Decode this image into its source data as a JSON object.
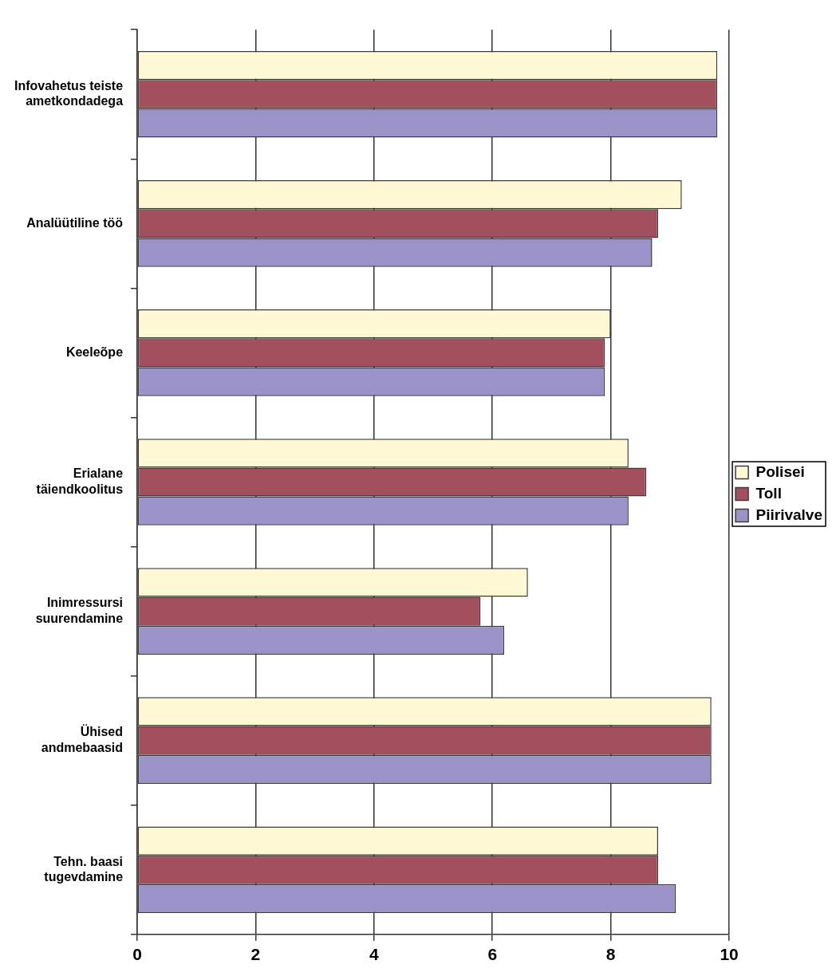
{
  "chart_data": {
    "type": "bar",
    "orientation": "horizontal",
    "categories": [
      "Infovahetus teiste\nametkondadega",
      "Analüütiline töö",
      "Keeleõpe",
      "Erialane\ntäiendkoolitus",
      "Inimressursi\nsuurendamine",
      "Ühised\nandmebaasid",
      "Tehn. baasi\ntugevdamine"
    ],
    "series": [
      {
        "name": "Polisei",
        "color": "#fff9d6",
        "values": [
          9.8,
          9.2,
          8.0,
          8.3,
          6.6,
          9.7,
          8.8
        ]
      },
      {
        "name": "Toll",
        "color": "#a3505e",
        "values": [
          9.8,
          8.8,
          7.9,
          8.6,
          5.8,
          9.7,
          8.8
        ]
      },
      {
        "name": "Piirivalve",
        "color": "#9b93c7",
        "values": [
          9.8,
          8.7,
          7.9,
          8.3,
          6.2,
          9.7,
          9.1
        ]
      }
    ],
    "xlim": [
      0,
      10
    ],
    "xticks": [
      0,
      2,
      4,
      6,
      8,
      10
    ],
    "grid": "x",
    "legend": "right"
  }
}
